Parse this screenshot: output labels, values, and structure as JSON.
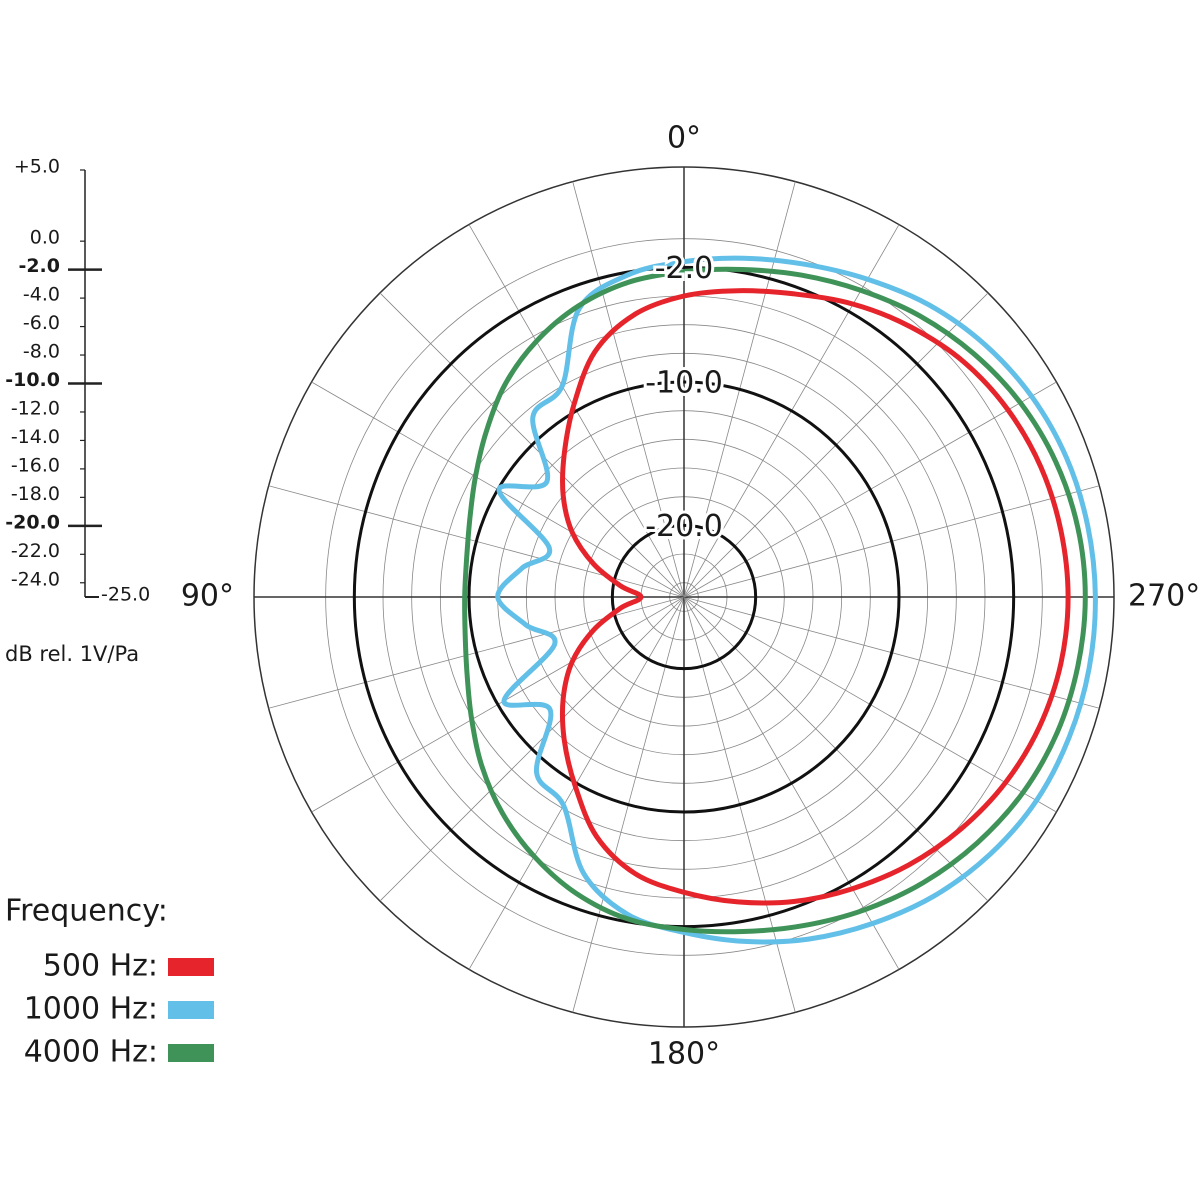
{
  "chart_data": {
    "type": "polar",
    "rlim": [
      -25,
      5
    ],
    "rticks": [
      {
        "value": -2,
        "label": "-2.0"
      },
      {
        "value": -10,
        "label": "-10.0"
      },
      {
        "value": -20,
        "label": "-20.0"
      }
    ],
    "angle_ticks": [
      {
        "value": 0,
        "label": "0°"
      },
      {
        "value": 90,
        "label": "90°"
      },
      {
        "value": 180,
        "label": "180°"
      },
      {
        "value": 270,
        "label": "270°"
      }
    ],
    "angle_grid": [
      0,
      15,
      30,
      45,
      60,
      75,
      90,
      105,
      120,
      135,
      150,
      165,
      180,
      195,
      210,
      225,
      240,
      255,
      270,
      285,
      300,
      315,
      330,
      345
    ],
    "ylim": [
      -25,
      5
    ],
    "yticks": [
      {
        "value": 5,
        "label": "+5.0"
      },
      {
        "value": 0,
        "label": "0.0"
      },
      {
        "value": -2,
        "label": "-2.0"
      },
      {
        "value": -4,
        "label": "-4.0"
      },
      {
        "value": -6,
        "label": "-6.0"
      },
      {
        "value": -8,
        "label": "-8.0"
      },
      {
        "value": -10,
        "label": "-10.0"
      },
      {
        "value": -12,
        "label": "-12.0"
      },
      {
        "value": -14,
        "label": "-14.0"
      },
      {
        "value": -16,
        "label": "-16.0"
      },
      {
        "value": -18,
        "label": "-18.0"
      },
      {
        "value": -20,
        "label": "-20.0"
      },
      {
        "value": -22,
        "label": "-22.0"
      },
      {
        "value": -24,
        "label": "-24.0"
      },
      {
        "value": -25,
        "label": "-25.0"
      }
    ],
    "y_label": "dB rel. 1V/Pa",
    "legend_title": "Frequency:",
    "x": [
      0,
      10,
      20,
      30,
      40,
      50,
      60,
      70,
      80,
      90,
      100,
      110,
      120,
      130,
      140,
      150,
      160,
      170,
      180,
      190,
      200,
      210,
      220,
      230,
      240,
      250,
      260,
      270,
      280,
      290,
      300,
      310,
      320,
      330,
      340,
      350
    ],
    "series": [
      {
        "name": "500 Hz:",
        "color": "#e5242b",
        "values": [
          -4.0,
          -5.0,
          -6.8,
          -9.6,
          -12.0,
          -14.0,
          -16.0,
          -18.3,
          -20.5,
          -22.0,
          -20.5,
          -18.3,
          -16.0,
          -14.0,
          -12.0,
          -9.8,
          -7.2,
          -5.4,
          -4.4,
          -3.4,
          -2.4,
          -1.5,
          -0.6,
          0.2,
          0.9,
          1.4,
          1.7,
          1.8,
          1.7,
          1.5,
          1.1,
          0.5,
          -0.4,
          -1.4,
          -2.5,
          -3.3
        ]
      },
      {
        "name": "1000 Hz:",
        "color": "#62bfe8",
        "values": [
          -1.6,
          -2.2,
          -3.6,
          -8.0,
          -8.6,
          -12.5,
          -10.1,
          -15.0,
          -13.5,
          -12.0,
          -13.8,
          -15.4,
          -10.5,
          -12.8,
          -9.0,
          -8.2,
          -4.5,
          -2.5,
          -1.6,
          -0.6,
          0.4,
          1.3,
          2.2,
          2.9,
          3.4,
          3.6,
          3.7,
          3.7,
          3.6,
          3.4,
          3.0,
          2.4,
          1.6,
          0.6,
          -0.3,
          -1.0
        ]
      },
      {
        "name": "4000 Hz:",
        "color": "#3f9358",
        "values": [
          -2.3,
          -2.7,
          -3.4,
          -4.4,
          -5.6,
          -7.0,
          -8.2,
          -9.1,
          -9.6,
          -9.7,
          -9.5,
          -8.9,
          -7.9,
          -6.6,
          -5.3,
          -4.1,
          -3.0,
          -2.2,
          -1.8,
          -1.3,
          -0.6,
          0.2,
          1.0,
          1.7,
          2.3,
          2.7,
          2.9,
          3.0,
          2.9,
          2.6,
          2.1,
          1.4,
          0.6,
          -0.3,
          -1.1,
          -1.8
        ]
      }
    ]
  }
}
